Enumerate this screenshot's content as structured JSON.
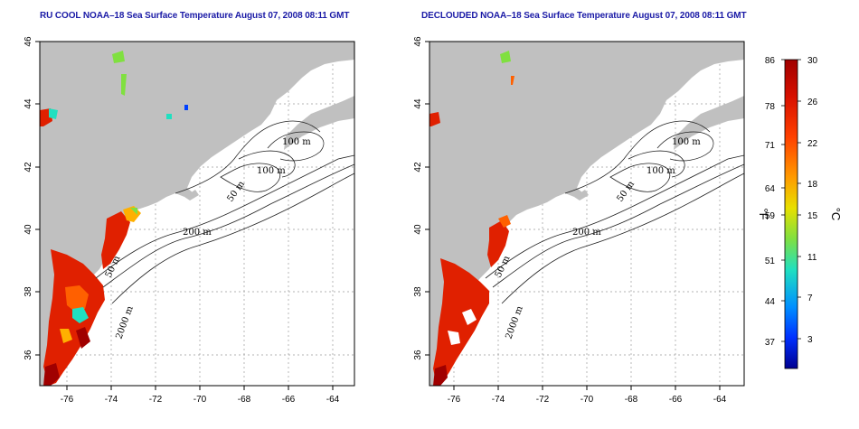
{
  "panels": [
    {
      "title": "RU COOL NOAA–18 Sea Surface Temperature August 07, 2008 08:11 GMT"
    },
    {
      "title": "DECLOUDED NOAA–18 Sea Surface Temperature August 07, 2008 08:11 GMT"
    }
  ],
  "map": {
    "x_ticks": [
      "-76",
      "-74",
      "-72",
      "-70",
      "-68",
      "-66",
      "-64"
    ],
    "y_ticks": [
      "36",
      "38",
      "40",
      "42",
      "44",
      "46"
    ],
    "contour_labels": [
      "100 m",
      "100 m",
      "50 m",
      "200 m",
      "50 m",
      "2000 m"
    ],
    "land_color": "#c0c0c0",
    "ocean_color": "#ffffff"
  },
  "colorbar": {
    "fahrenheit_ticks": [
      "86",
      "78",
      "71",
      "64",
      "59",
      "51",
      "44",
      "37"
    ],
    "celsius_ticks": [
      "30",
      "26",
      "22",
      "18",
      "15",
      "11",
      "7",
      "3"
    ],
    "fahrenheit_unit": "°F",
    "celsius_unit": "°C",
    "colors": [
      "#a00000",
      "#e02000",
      "#ff6000",
      "#ffb000",
      "#e0e000",
      "#80e040",
      "#20e0c0",
      "#00a0ff",
      "#0040ff",
      "#0000a0"
    ]
  }
}
